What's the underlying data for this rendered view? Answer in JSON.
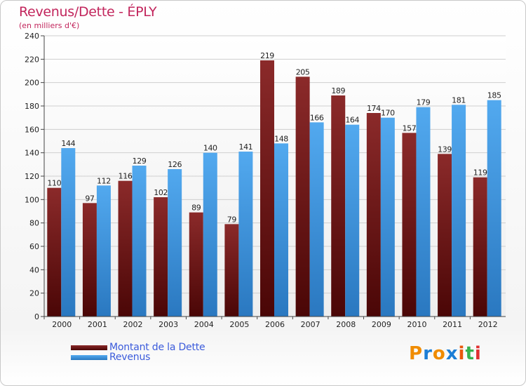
{
  "chart_data": {
    "type": "bar",
    "title": "Revenus/Dette - ÉPLY",
    "subtitle": "(en milliers d'€)",
    "categories": [
      "2000",
      "2001",
      "2002",
      "2003",
      "2004",
      "2005",
      "2006",
      "2007",
      "2008",
      "2009",
      "2010",
      "2011",
      "2012"
    ],
    "series": [
      {
        "name": "Montant de la Dette",
        "color": "#7a1414",
        "values": [
          110,
          97,
          116,
          102,
          89,
          79,
          219,
          205,
          189,
          174,
          157,
          139,
          119
        ]
      },
      {
        "name": "Revenus",
        "color": "#3d95dd",
        "values": [
          144,
          112,
          129,
          126,
          140,
          141,
          148,
          166,
          164,
          170,
          179,
          181,
          185
        ]
      }
    ],
    "ylim": [
      0,
      240
    ],
    "yticks": [
      0,
      20,
      40,
      60,
      80,
      100,
      120,
      140,
      160,
      180,
      200,
      220,
      240
    ],
    "grid": true,
    "legend": "bottom-left"
  },
  "brand": {
    "name": "Proxiti",
    "letters": [
      "P",
      "r",
      "o",
      "x",
      "i",
      "t",
      "i"
    ],
    "letter_colors": [
      "#f08c00",
      "#1c7ed6",
      "#f08c00",
      "#1c7ed6",
      "#e8590c",
      "#37b24d",
      "#e03131"
    ]
  }
}
